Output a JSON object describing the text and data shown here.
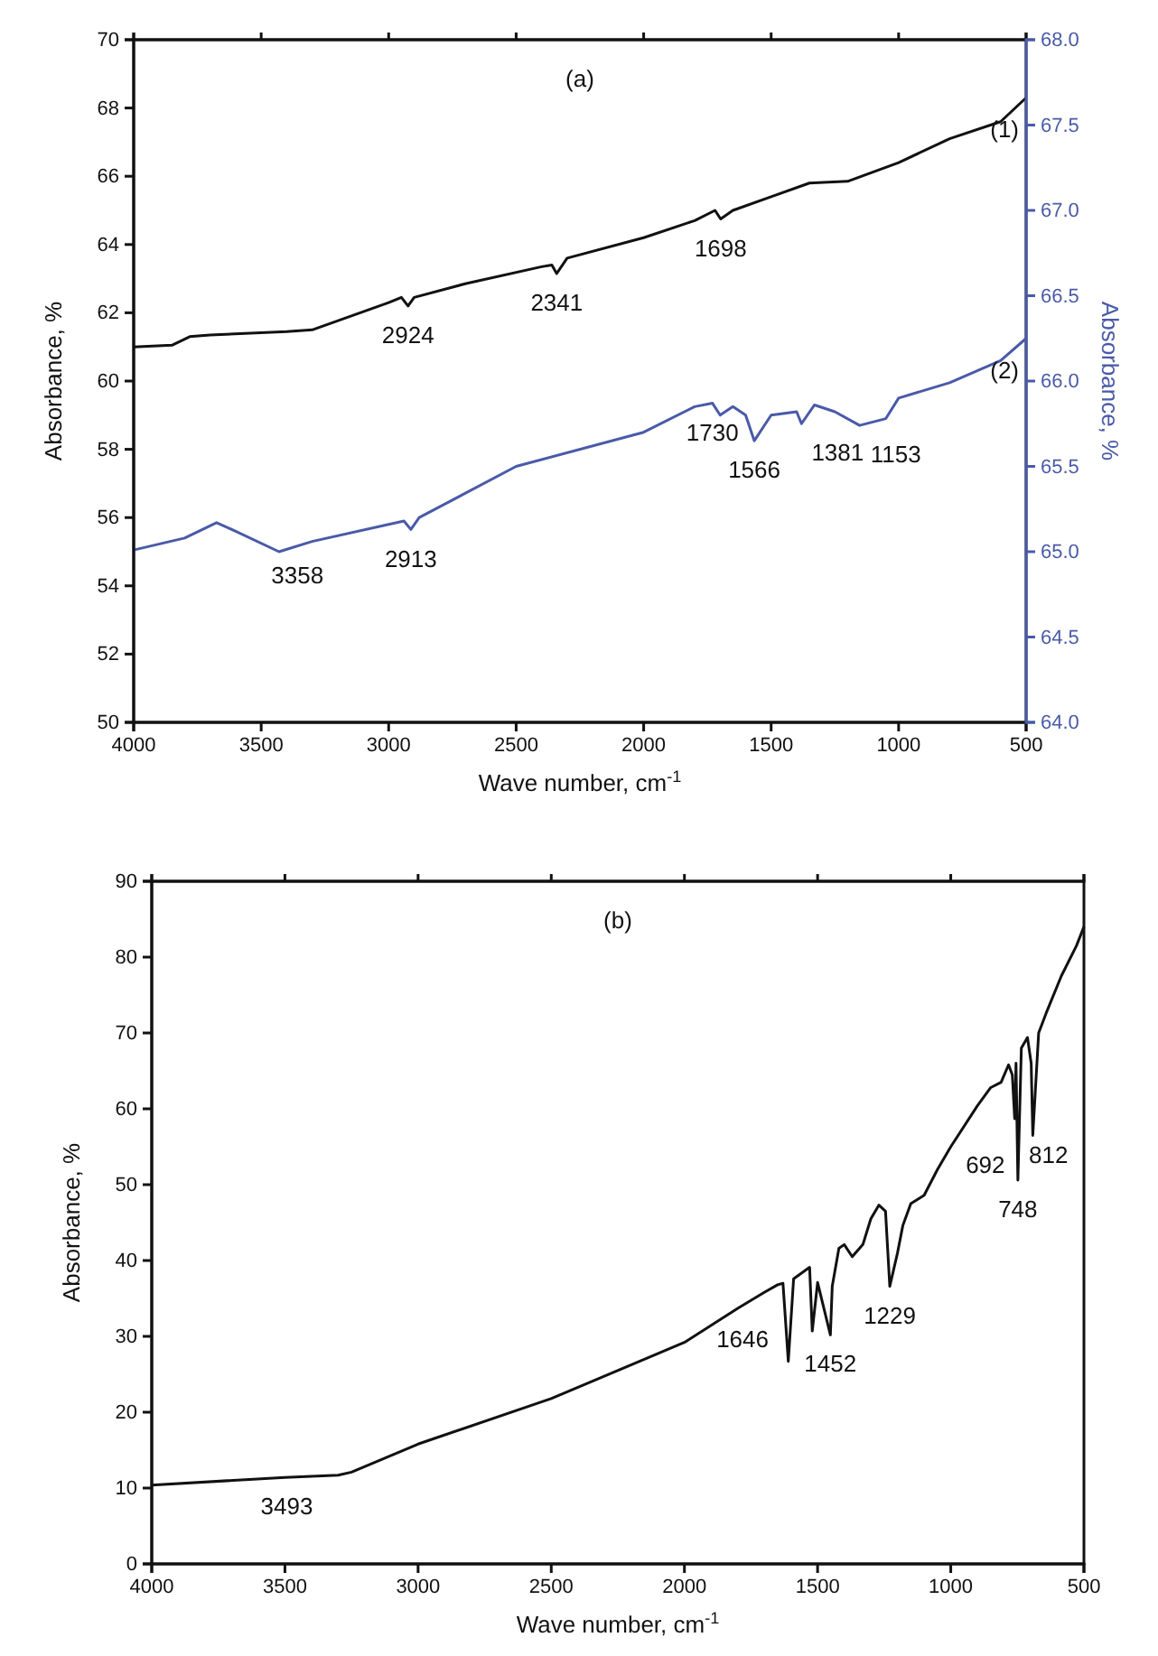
{
  "chart_data": [
    {
      "type": "line",
      "title": "(a)",
      "xlabel": "Wave number, cm$^{-1}$",
      "ylabel": "Absorbance, %",
      "y2label": "Absorbance, %",
      "xlim": [
        4000,
        500
      ],
      "xticks": [
        4000,
        3500,
        3000,
        2500,
        2000,
        1500,
        1000,
        500
      ],
      "ylim": [
        50,
        70
      ],
      "yticks": [
        50,
        52,
        54,
        56,
        58,
        60,
        62,
        64,
        66,
        68,
        70
      ],
      "y2lim": [
        64,
        68
      ],
      "y2ticks": [
        {
          "value": 64,
          "label": "64.0"
        },
        {
          "value": 64.5,
          "label": "64.5"
        },
        {
          "value": 65,
          "label": "65.0"
        },
        {
          "value": 65.5,
          "label": "65.5"
        },
        {
          "value": 66,
          "label": "66.0"
        },
        {
          "value": 66.5,
          "label": "66.5"
        },
        {
          "value": 67,
          "label": "67.0"
        },
        {
          "value": 67.5,
          "label": "67.5"
        },
        {
          "value": 68,
          "label": "68.0"
        }
      ],
      "grid": false,
      "marker": "none",
      "line_style": "solid",
      "series": [
        {
          "name": "(1)",
          "color": "#111111",
          "x": [
            4000,
            3850,
            3780,
            3700,
            3400,
            3300,
            3000,
            2950,
            2924,
            2900,
            2700,
            2400,
            2360,
            2341,
            2300,
            2000,
            1800,
            1720,
            1698,
            1650,
            1500,
            1350,
            1200,
            1000,
            800,
            600,
            500
          ],
          "values": [
            61.0,
            61.05,
            61.3,
            61.35,
            61.45,
            61.5,
            62.3,
            62.45,
            62.2,
            62.45,
            62.85,
            63.35,
            63.4,
            63.15,
            63.6,
            64.2,
            64.7,
            65.0,
            64.75,
            65.0,
            65.4,
            65.8,
            65.85,
            66.4,
            67.1,
            67.6,
            68.3
          ]
        },
        {
          "name": "(2)",
          "color": "#4a5aa8",
          "axis": "y2",
          "x": [
            4000,
            3800,
            3675,
            3600,
            3430,
            3300,
            3000,
            2940,
            2913,
            2880,
            2500,
            2000,
            1800,
            1730,
            1700,
            1650,
            1600,
            1566,
            1500,
            1400,
            1381,
            1330,
            1250,
            1153,
            1050,
            1000,
            800,
            600,
            500
          ],
          "values": [
            65.01,
            65.08,
            65.17,
            65.12,
            65.0,
            65.06,
            65.16,
            65.18,
            65.13,
            65.2,
            65.5,
            65.7,
            65.85,
            65.87,
            65.8,
            65.85,
            65.8,
            65.65,
            65.8,
            65.82,
            65.75,
            65.86,
            65.82,
            65.74,
            65.78,
            65.9,
            65.99,
            66.12,
            66.25
          ]
        }
      ],
      "annotations": [
        {
          "text": "2924",
          "x": 2924,
          "y": 62.2
        },
        {
          "text": "2341",
          "x": 2341,
          "y": 63.15
        },
        {
          "text": "1698",
          "x": 1698,
          "y": 64.75
        },
        {
          "text": "3358",
          "x": 3358,
          "y": 55.15
        },
        {
          "text": "2913",
          "x": 2913,
          "y": 55.65
        },
        {
          "text": "1730",
          "x": 1730,
          "y": 59.35
        },
        {
          "text": "1566",
          "x": 1566,
          "y": 58.25
        },
        {
          "text": "1381",
          "x": 1381,
          "y": 58.75
        },
        {
          "text": "1153",
          "x": 1153,
          "y": 58.7
        }
      ]
    },
    {
      "type": "line",
      "title": "(b)",
      "xlabel": "Wave number, cm$^{-1}$",
      "ylabel": "Absorbance, %",
      "xlim": [
        4000,
        500
      ],
      "xticks": [
        4000,
        3500,
        3000,
        2500,
        2000,
        1500,
        1000,
        500
      ],
      "ylim": [
        0,
        90
      ],
      "yticks": [
        0,
        10,
        20,
        30,
        40,
        50,
        60,
        70,
        80,
        90
      ],
      "grid": false,
      "marker": "none",
      "line_style": "solid",
      "series": [
        {
          "color": "#111111",
          "x": [
            4000,
            3500,
            3300,
            3250,
            3000,
            2500,
            2000,
            1800,
            1700,
            1650,
            1630,
            1610,
            1590,
            1550,
            1530,
            1520,
            1500,
            1452,
            1445,
            1420,
            1400,
            1370,
            1330,
            1300,
            1270,
            1245,
            1229,
            1200,
            1180,
            1150,
            1100,
            1050,
            1000,
            900,
            850,
            811,
            783,
            769,
            760,
            755,
            748,
            735,
            712,
            698,
            692,
            670,
            642,
            585,
            528,
            500
          ],
          "values": [
            10.4,
            11.4,
            11.7,
            12.1,
            15.8,
            21.8,
            29.2,
            33.7,
            35.8,
            36.8,
            37.0,
            26.7,
            37.6,
            38.6,
            39.1,
            30.7,
            37.1,
            30.2,
            36.6,
            41.6,
            42.1,
            40.5,
            42.1,
            45.5,
            47.3,
            46.5,
            36.6,
            41.0,
            44.6,
            47.5,
            48.6,
            52.0,
            55.0,
            60.4,
            62.8,
            63.5,
            65.8,
            64.5,
            58.7,
            66.0,
            50.6,
            68.0,
            69.4,
            66.0,
            56.5,
            70.0,
            72.6,
            77.5,
            81.5,
            84.0
          ]
        }
      ],
      "annotations": [
        {
          "text": "812",
          "x": 811,
          "y": 63.5
        },
        {
          "text": "692",
          "x": 692,
          "y": 56.5
        },
        {
          "text": "748",
          "x": 748,
          "y": 50.6
        },
        {
          "text": "1229",
          "x": 1229,
          "y": 36.6
        },
        {
          "text": "1452",
          "x": 1452,
          "y": 30.2
        },
        {
          "text": "1646",
          "x": 1646,
          "y": 36.85
        },
        {
          "text": "3493",
          "x": 3493,
          "y": 11.4
        }
      ]
    }
  ]
}
